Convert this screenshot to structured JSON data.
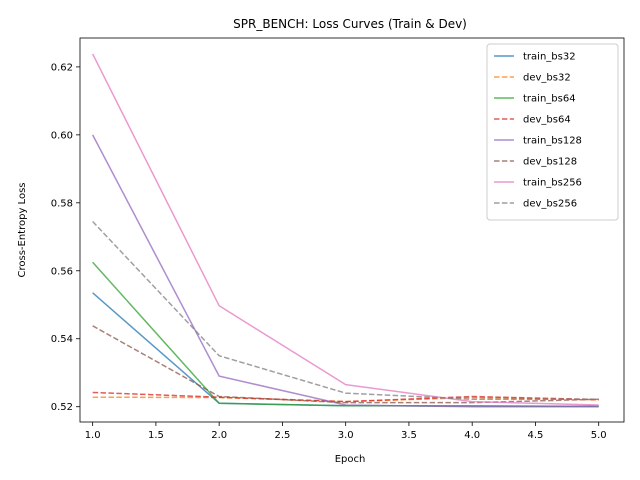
{
  "chart_data": {
    "type": "line",
    "title": "SPR_BENCH: Loss Curves (Train & Dev)",
    "xlabel": "Epoch",
    "ylabel": "Cross-Entropy Loss",
    "xlim": [
      0.9,
      5.2
    ],
    "ylim": [
      0.5155,
      0.6285
    ],
    "x": [
      1,
      2,
      3,
      4,
      5
    ],
    "xticks": [
      1.0,
      1.5,
      2.0,
      2.5,
      3.0,
      3.5,
      4.0,
      4.5,
      5.0
    ],
    "xtick_labels": [
      "1.0",
      "1.5",
      "2.0",
      "2.5",
      "3.0",
      "3.5",
      "4.0",
      "4.5",
      "5.0"
    ],
    "yticks": [
      0.52,
      0.54,
      0.56,
      0.58,
      0.6,
      0.62
    ],
    "ytick_labels": [
      "0.52",
      "0.54",
      "0.56",
      "0.58",
      "0.60",
      "0.62"
    ],
    "grid": false,
    "legend_position": "top-right",
    "series": [
      {
        "name": "train_bs32",
        "color": "#1f77b4",
        "dash": false,
        "values": [
          0.5535,
          0.521,
          0.5203,
          0.5202,
          0.5201
        ]
      },
      {
        "name": "dev_bs32",
        "color": "#ff7f0e",
        "dash": true,
        "values": [
          0.5228,
          0.5227,
          0.5215,
          0.5227,
          0.522
        ]
      },
      {
        "name": "train_bs64",
        "color": "#2ca02c",
        "dash": false,
        "values": [
          0.5625,
          0.521,
          0.5203,
          0.5202,
          0.5201
        ]
      },
      {
        "name": "dev_bs64",
        "color": "#d62728",
        "dash": true,
        "values": [
          0.5242,
          0.5228,
          0.5215,
          0.523,
          0.5221
        ]
      },
      {
        "name": "train_bs128",
        "color": "#9467bd",
        "dash": false,
        "values": [
          0.6,
          0.529,
          0.5205,
          0.52,
          0.52
        ]
      },
      {
        "name": "dev_bs128",
        "color": "#8c564b",
        "dash": true,
        "values": [
          0.5438,
          0.523,
          0.5212,
          0.5212,
          0.5222
        ]
      },
      {
        "name": "train_bs256",
        "color": "#e377c2",
        "dash": false,
        "values": [
          0.6238,
          0.5497,
          0.5265,
          0.5215,
          0.5205
        ]
      },
      {
        "name": "dev_bs256",
        "color": "#7f7f7f",
        "dash": true,
        "values": [
          0.5745,
          0.535,
          0.524,
          0.5222,
          0.5222
        ]
      }
    ]
  }
}
